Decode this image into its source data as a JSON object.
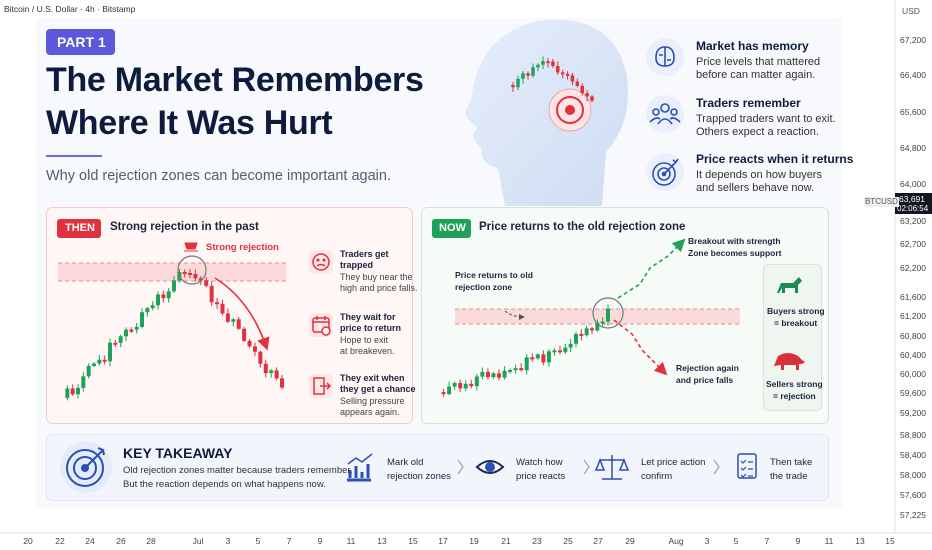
{
  "header": {
    "symbol": "Bitcoin / U.S. Dollar · 4h · Bitstamp",
    "currency": "USD"
  },
  "price_axis": {
    "ticks": [
      "67,200",
      "66,400",
      "65,600",
      "64,800",
      "64,000",
      "63,200",
      "62,700",
      "62,200",
      "61,600",
      "61,200",
      "60,800",
      "60,400",
      "60,000",
      "59,600",
      "59,200",
      "58,800",
      "58,400",
      "58,000",
      "57,600",
      "57,225"
    ],
    "ticker": "BTCUSD",
    "last_price": "63,691",
    "countdown": "02:06:54"
  },
  "time_axis": [
    "20",
    "22",
    "24",
    "26",
    "28",
    "Jul",
    "3",
    "5",
    "7",
    "9",
    "11",
    "13",
    "15",
    "17",
    "19",
    "21",
    "23",
    "25",
    "27",
    "29",
    "Aug",
    "3",
    "5",
    "7",
    "9",
    "11",
    "13",
    "15"
  ],
  "hero": {
    "badge": "PART 1",
    "title": [
      "The Market Remembers",
      "Where It Was Hurt"
    ],
    "subtitle": "Why old rejection zones can become important again."
  },
  "points": [
    {
      "title": "Market has memory",
      "text": [
        "Price levels that mattered",
        "before can matter again."
      ]
    },
    {
      "title": "Traders remember",
      "text": [
        "Trapped traders want to exit.",
        "Others expect a reaction."
      ]
    },
    {
      "title": "Price reacts when it returns",
      "text": [
        "It depends on how buyers",
        "and sellers behave now."
      ]
    }
  ],
  "then": {
    "tag": "THEN",
    "title": "Strong rejection in the past",
    "annotation": "Strong rejection",
    "steps": [
      {
        "title": [
          "Traders get",
          "trapped"
        ],
        "text": [
          "They buy near the",
          "high and price falls."
        ]
      },
      {
        "title": [
          "They wait for",
          "price to return"
        ],
        "text": [
          "Hope to exit",
          "at breakeven."
        ]
      },
      {
        "title": [
          "They exit when",
          "they get a chance"
        ],
        "text": [
          "Selling pressure",
          "appears again."
        ]
      }
    ]
  },
  "now": {
    "tag": "NOW",
    "title": "Price returns to the old rejection zone",
    "zone_label": [
      "Price returns to old",
      "rejection zone"
    ],
    "breakout": [
      "Breakout with strength",
      "Zone becomes support"
    ],
    "rejection": [
      "Rejection again",
      "and price falls"
    ],
    "bulls": [
      "Buyers strong",
      "= breakout"
    ],
    "bears": [
      "Sellers strong",
      "= rejection"
    ]
  },
  "takeaway": {
    "title": "KEY TAKEAWAY",
    "text": [
      "Old rejection zones matter because traders remember.",
      "But the reaction depends on what happens now."
    ],
    "steps": [
      [
        "Mark old",
        "rejection zones"
      ],
      [
        "Watch how",
        "price reacts"
      ],
      [
        "Let price action",
        "confirm"
      ],
      [
        "Then take",
        "the trade"
      ]
    ]
  }
}
